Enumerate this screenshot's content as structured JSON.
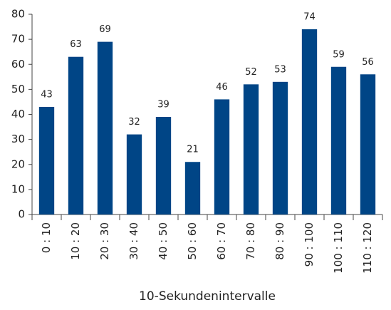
{
  "chart_data": {
    "type": "bar",
    "categories": [
      "0 : 10",
      "10 : 20",
      "20 : 30",
      "30 : 40",
      "40 : 50",
      "50 : 60",
      "60 : 70",
      "70 : 80",
      "80 : 90",
      "90 : 100",
      "100 : 110",
      "110 : 120"
    ],
    "values": [
      43,
      63,
      69,
      32,
      39,
      21,
      46,
      52,
      53,
      74,
      59,
      56
    ],
    "color": "#004586",
    "xlabel": "10-Sekundenintervalle",
    "ylim": [
      0,
      80
    ],
    "yticks": [
      0,
      10,
      20,
      30,
      40,
      50,
      60,
      70,
      80
    ],
    "grid": false
  }
}
